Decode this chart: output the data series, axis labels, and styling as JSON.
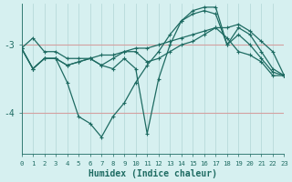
{
  "xlabel": "Humidex (Indice chaleur)",
  "background_color": "#d6f0f0",
  "grid_color": "#b8dada",
  "line_color": "#1e6b62",
  "hline_color": "#d4a0a0",
  "xlim": [
    0,
    23
  ],
  "ylim": [
    -4.6,
    -2.4
  ],
  "yticks": [
    -4,
    -3
  ],
  "xticks": [
    0,
    1,
    2,
    3,
    4,
    5,
    6,
    7,
    8,
    9,
    10,
    11,
    12,
    13,
    14,
    15,
    16,
    17,
    18,
    19,
    20,
    21,
    22,
    23
  ],
  "series": [
    {
      "x": [
        0,
        1,
        2,
        3,
        4,
        5,
        6,
        7,
        8,
        9,
        10,
        11,
        12,
        13,
        14,
        15,
        16,
        17,
        18,
        19,
        20,
        21,
        22,
        23
      ],
      "y": [
        -3.05,
        -2.9,
        -3.1,
        -3.1,
        -3.2,
        -3.2,
        -3.2,
        -3.15,
        -3.15,
        -3.1,
        -3.05,
        -3.05,
        -3.0,
        -2.95,
        -2.9,
        -2.85,
        -2.8,
        -2.75,
        -2.75,
        -2.7,
        -2.8,
        -2.95,
        -3.1,
        -3.45
      ]
    },
    {
      "x": [
        0,
        1,
        2,
        3,
        4,
        5,
        6,
        7,
        8,
        9,
        10,
        11,
        12,
        13,
        14,
        15,
        16,
        17,
        18,
        19,
        20,
        21,
        22,
        23
      ],
      "y": [
        -3.05,
        -3.35,
        -3.2,
        -3.2,
        -3.55,
        -4.05,
        -4.15,
        -4.35,
        -4.05,
        -3.85,
        -3.55,
        -3.3,
        -3.1,
        -2.85,
        -2.65,
        -2.55,
        -2.5,
        -2.55,
        -3.0,
        -2.85,
        -3.0,
        -3.2,
        -3.4,
        -3.45
      ]
    },
    {
      "x": [
        0,
        1,
        2,
        3,
        4,
        5,
        6,
        7,
        8,
        9,
        10,
        11,
        12,
        13,
        14,
        15,
        16,
        17,
        18,
        19,
        20,
        21,
        22,
        23
      ],
      "y": [
        -3.05,
        -3.35,
        -3.2,
        -3.2,
        -3.3,
        -3.25,
        -3.2,
        -3.3,
        -3.35,
        -3.2,
        -3.35,
        -4.3,
        -3.5,
        -3.0,
        -2.65,
        -2.5,
        -2.45,
        -2.45,
        -3.0,
        -2.75,
        -2.85,
        -3.1,
        -3.35,
        -3.45
      ]
    },
    {
      "x": [
        0,
        1,
        2,
        3,
        4,
        5,
        6,
        7,
        8,
        9,
        10,
        11,
        12,
        13,
        14,
        15,
        16,
        17,
        18,
        19,
        20,
        21,
        22,
        23
      ],
      "y": [
        -3.05,
        -3.35,
        -3.2,
        -3.2,
        -3.3,
        -3.25,
        -3.2,
        -3.3,
        -3.2,
        -3.1,
        -3.1,
        -3.25,
        -3.2,
        -3.1,
        -3.0,
        -2.95,
        -2.85,
        -2.75,
        -2.9,
        -3.1,
        -3.15,
        -3.25,
        -3.45,
        -3.45
      ]
    }
  ]
}
